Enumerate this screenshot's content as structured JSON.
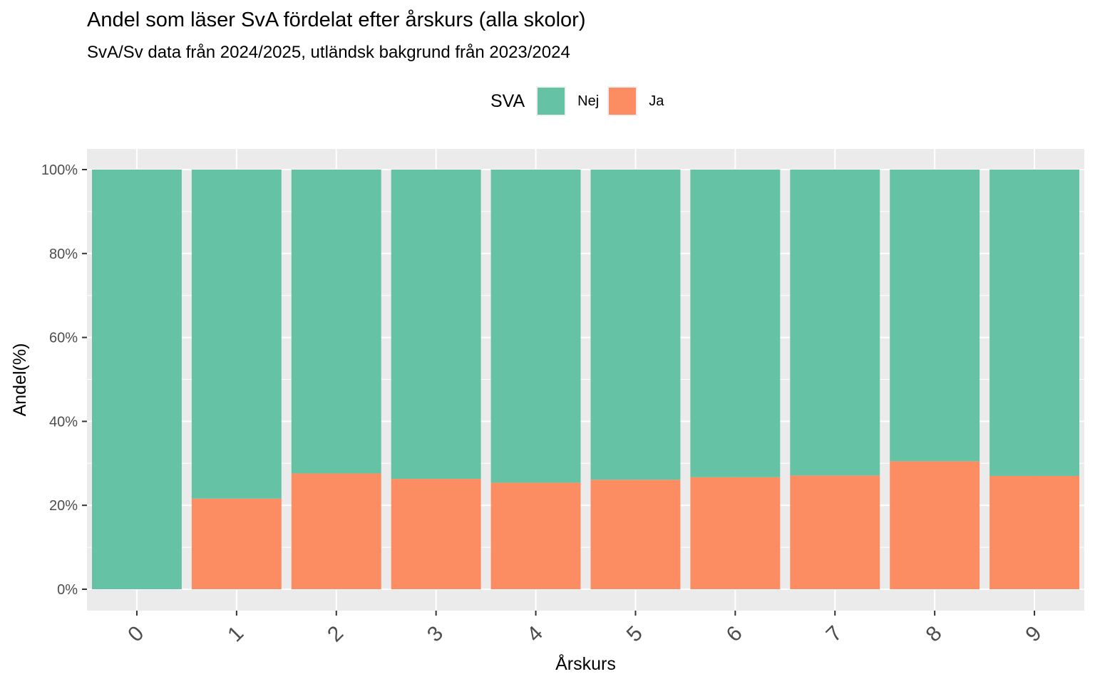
{
  "chart_data": {
    "type": "bar",
    "stacked": true,
    "normalized": true,
    "title": "Andel som läser SvA fördelat efter årskurs (alla skolor)",
    "subtitle": "SvA/Sv data från 2024/2025, utländsk bakgrund från 2023/2024",
    "xlabel": "Årskurs",
    "ylabel": "Andel(%)",
    "categories": [
      "0",
      "1",
      "2",
      "3",
      "4",
      "5",
      "6",
      "7",
      "8",
      "9"
    ],
    "series": [
      {
        "name": "Nej",
        "color": "#66C2A5",
        "values": [
          100,
          78.4,
          72.4,
          73.7,
          74.6,
          73.9,
          73.3,
          72.9,
          69.5,
          73.0
        ]
      },
      {
        "name": "Ja",
        "color": "#FC8D62",
        "values": [
          0,
          21.6,
          27.6,
          26.3,
          25.4,
          26.1,
          26.7,
          27.1,
          30.5,
          27.0
        ]
      }
    ],
    "ylim": [
      0,
      100
    ],
    "yticks": [
      "0%",
      "20%",
      "40%",
      "60%",
      "80%",
      "100%"
    ],
    "legend": {
      "title": "SVA",
      "position": "top"
    },
    "grid": true,
    "panel_background": "#EBEBEB"
  }
}
